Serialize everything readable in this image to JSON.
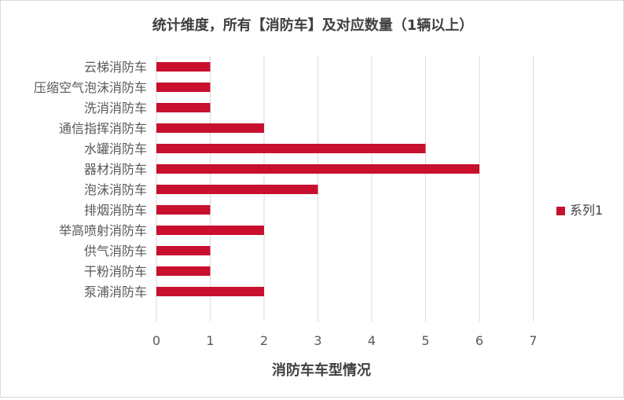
{
  "chart_data": {
    "type": "bar",
    "orientation": "horizontal",
    "title": "统计维度，所有【消防车】及对应数量（1辆以上）",
    "xlabel": "消防车车型情况",
    "ylabel": "",
    "categories": [
      "云梯消防车",
      "压缩空气泡沫消防车",
      "洗消消防车",
      "通信指挥消防车",
      "水罐消防车",
      "器材消防车",
      "泡沫消防车",
      "排烟消防车",
      "举高喷射消防车",
      "供气消防车",
      "干粉消防车",
      "泵浦消防车"
    ],
    "series": [
      {
        "name": "系列1",
        "values": [
          1,
          1,
          1,
          2,
          5,
          6,
          3,
          1,
          2,
          1,
          1,
          2
        ],
        "color": "#c8102e"
      }
    ],
    "xlim": [
      0,
      7
    ],
    "xticks": [
      "0",
      "1",
      "2",
      "3",
      "4",
      "5",
      "6",
      "7"
    ],
    "grid": "vertical",
    "legend": "right"
  }
}
